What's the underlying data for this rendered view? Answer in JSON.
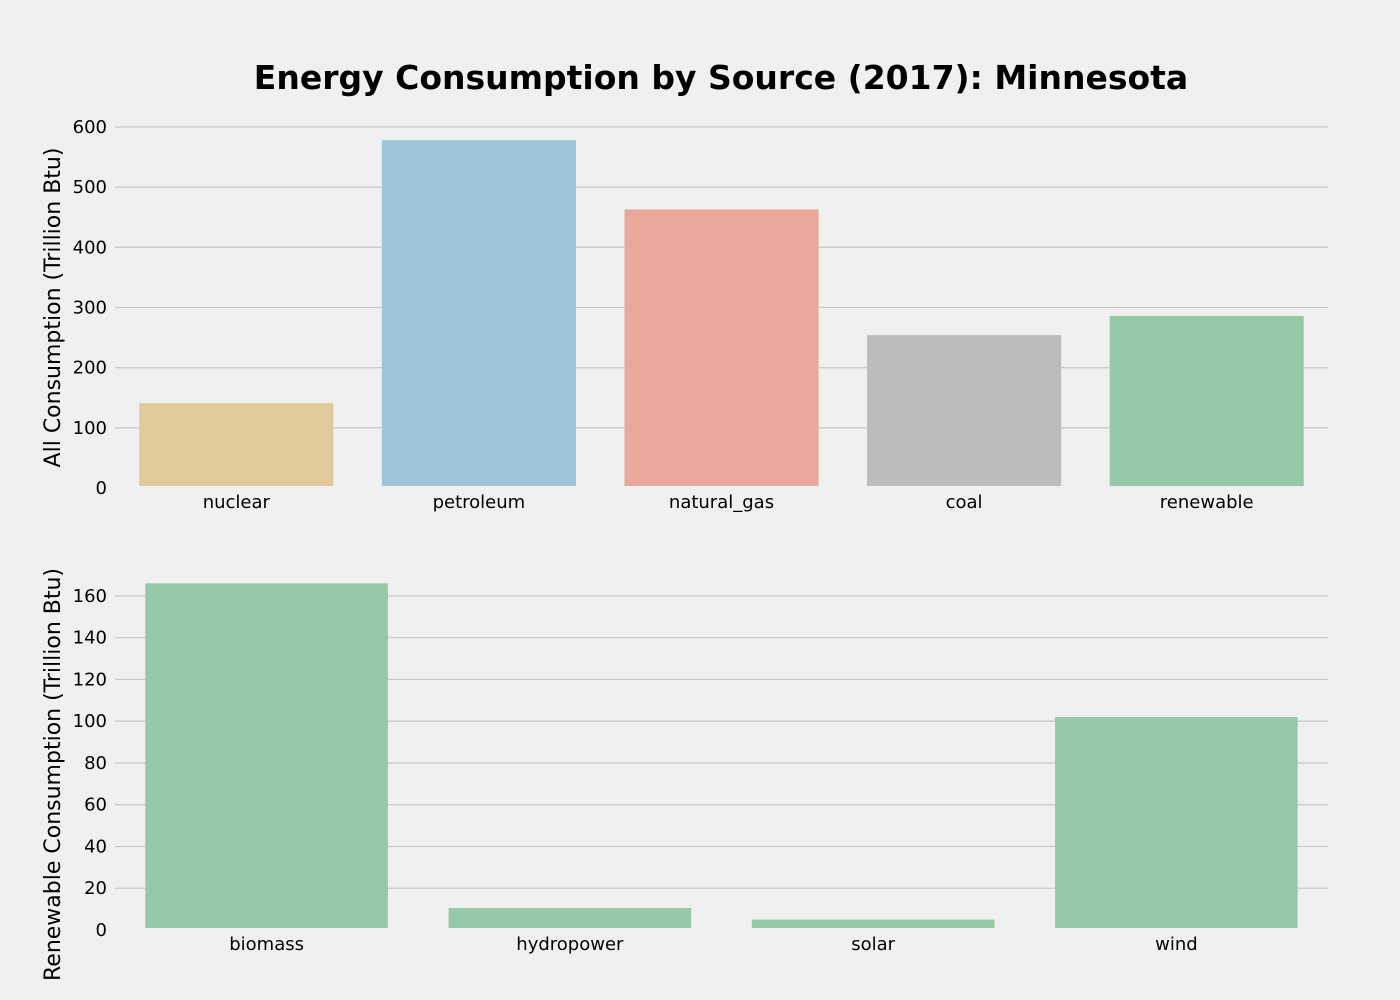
{
  "title": "Energy Consumption by Source (2017): Minnesota",
  "chart_data": [
    {
      "type": "bar",
      "ylabel": "All Consumption (Trillion Btu)",
      "categories": [
        "nuclear",
        "petroleum",
        "natural_gas",
        "coal",
        "renewable"
      ],
      "values": [
        141,
        578,
        463,
        254,
        286
      ],
      "colors": [
        "#e0c99b",
        "#9dc4db",
        "#e8a99c",
        "#bcbcbc",
        "#96c9a8"
      ],
      "ylim": [
        0,
        600
      ],
      "yticks": [
        0,
        100,
        200,
        300,
        400,
        500,
        600
      ],
      "grid": true
    },
    {
      "type": "bar",
      "ylabel": "Renewable Consumption (Trillion Btu)",
      "categories": [
        "biomass",
        "hydropower",
        "solar",
        "wind"
      ],
      "values": [
        166,
        10.5,
        5,
        102
      ],
      "colors": [
        "#96c9a8",
        "#96c9a8",
        "#96c9a8",
        "#96c9a8"
      ],
      "ylim": [
        0,
        170
      ],
      "yticks": [
        0,
        20,
        40,
        60,
        80,
        100,
        120,
        140,
        160
      ],
      "grid": true
    }
  ]
}
